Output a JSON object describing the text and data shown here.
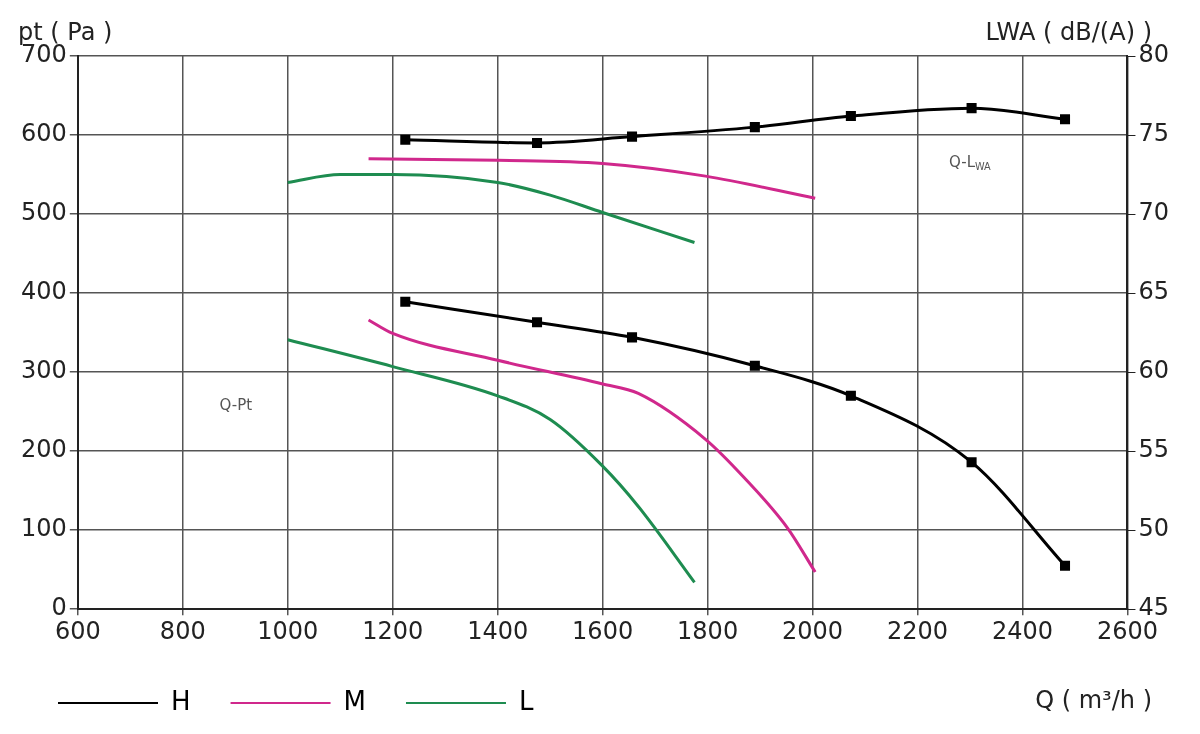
{
  "chart_data": {
    "type": "line",
    "xlabel": "Q ( m³/h )",
    "ylabel": "pt ( Pa )",
    "y2label": "LWA ( dB/(A) )",
    "annotations": [
      "Q-Pt",
      "Q-L$_{WA}$"
    ],
    "xlim": [
      600,
      2600
    ],
    "xticks": [
      600,
      800,
      1000,
      1200,
      1400,
      1600,
      1800,
      2000,
      2200,
      2400,
      2600
    ],
    "ylim": [
      0,
      700
    ],
    "yticks": [
      0,
      100,
      200,
      300,
      400,
      500,
      600,
      700
    ],
    "y2lim": [
      45,
      80
    ],
    "y2ticks": [
      45,
      50,
      55,
      60,
      65,
      70,
      75,
      80
    ],
    "grid": true,
    "legend": "bottom",
    "line_style": "solid",
    "series": [
      {
        "name": "H",
        "color": "#000000",
        "marker": "square",
        "x": [
          1224,
          1475,
          1656,
          1890,
          2073,
          2303,
          2481
        ],
        "values": [
          389,
          363,
          344,
          308,
          270,
          186,
          55
        ]
      },
      {
        "name": "M",
        "color": "#d0288c",
        "marker": "none",
        "x": [
          1154,
          1200,
          1400,
          1600,
          1668,
          1796,
          1869,
          1952,
          2005
        ],
        "values": [
          366,
          349,
          315,
          285,
          273,
          215,
          167,
          103,
          47
        ]
      },
      {
        "name": "L",
        "color": "#1e8c50",
        "marker": "none",
        "x": [
          1000,
          1200,
          1400,
          1500,
          1600,
          1668,
          1775
        ],
        "values": [
          341,
          307,
          270,
          240,
          181,
          130,
          34
        ]
      },
      {
        "color": "#000000",
        "marker": "square",
        "axis": "y2",
        "x": [
          1224,
          1475,
          1656,
          1890,
          2073,
          2303,
          2481
        ],
        "values": [
          74.7,
          74.5,
          74.9,
          75.5,
          76.2,
          76.7,
          76.0
        ]
      },
      {
        "color": "#d0288c",
        "marker": "none",
        "axis": "y2",
        "x": [
          1154,
          1400,
          1600,
          1796,
          2005
        ],
        "values": [
          73.5,
          73.4,
          73.2,
          72.4,
          71.0
        ]
      },
      {
        "color": "#1e8c50",
        "marker": "none",
        "axis": "y2",
        "x": [
          1000,
          1100,
          1200,
          1400,
          1500,
          1600,
          1775
        ],
        "values": [
          72.0,
          72.5,
          72.5,
          72.0,
          71.2,
          70.1,
          68.2
        ]
      }
    ]
  }
}
